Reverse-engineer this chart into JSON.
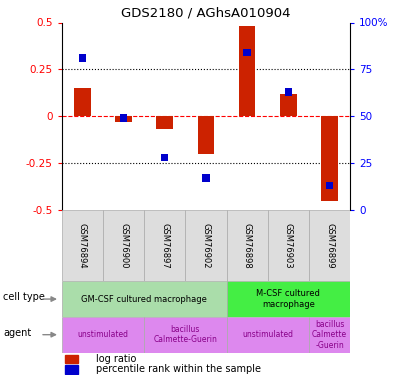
{
  "title": "GDS2180 / AGhsA010904",
  "samples": [
    "GSM76894",
    "GSM76900",
    "GSM76897",
    "GSM76902",
    "GSM76898",
    "GSM76903",
    "GSM76899"
  ],
  "log_ratio": [
    0.15,
    -0.03,
    -0.07,
    -0.2,
    0.48,
    0.12,
    -0.45
  ],
  "percentile_pct": [
    81,
    49,
    28,
    17,
    84,
    63,
    13
  ],
  "ylim_left": [
    -0.5,
    0.5
  ],
  "ylim_right": [
    0,
    100
  ],
  "yticks_left": [
    -0.5,
    -0.25,
    0,
    0.25,
    0.5
  ],
  "yticks_right": [
    0,
    25,
    50,
    75,
    100
  ],
  "bar_color": "#cc2200",
  "dot_color": "#0000cc",
  "cell_type_groups": [
    {
      "label": "GM-CSF cultured macrophage",
      "start": 0,
      "end": 4,
      "color": "#aaddaa"
    },
    {
      "label": "M-CSF cultured\nmacrophage",
      "start": 4,
      "end": 7,
      "color": "#44ee44"
    }
  ],
  "agent_groups": [
    {
      "label": "unstimulated",
      "start": 0,
      "end": 2,
      "color": "#dd88ee"
    },
    {
      "label": "bacillus\nCalmette-Guerin",
      "start": 2,
      "end": 4,
      "color": "#dd88ee"
    },
    {
      "label": "unstimulated",
      "start": 4,
      "end": 6,
      "color": "#dd88ee"
    },
    {
      "label": "bacillus\nCalmette\n-Guerin",
      "start": 6,
      "end": 7,
      "color": "#dd88ee"
    }
  ],
  "legend_bar_color": "#cc2200",
  "legend_dot_color": "#0000cc",
  "legend_label1": "log ratio",
  "legend_label2": "percentile rank within the sample"
}
